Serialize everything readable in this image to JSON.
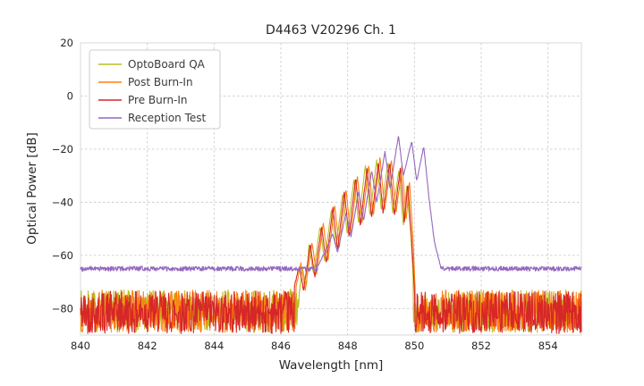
{
  "figure": {
    "background": "#ffffff"
  },
  "chart_data": {
    "type": "line",
    "title": "D4463 V20296 Ch. 1",
    "xlabel": "Wavelength [nm]",
    "ylabel": "Optical Power [dB]",
    "xlim": [
      840,
      855
    ],
    "ylim": [
      -90,
      20
    ],
    "grid": true,
    "legend_position": "upper left",
    "style": {
      "grid_color": "#cccccc",
      "spine_color": "#d9d9d9",
      "legend_border_color": "#cccccc",
      "text_color": "#262626"
    },
    "xticks": [
      {
        "value": 840,
        "label": "840"
      },
      {
        "value": 842,
        "label": "842"
      },
      {
        "value": 844,
        "label": "844"
      },
      {
        "value": 846,
        "label": "846"
      },
      {
        "value": 848,
        "label": "848"
      },
      {
        "value": 850,
        "label": "850"
      },
      {
        "value": 852,
        "label": "852"
      },
      {
        "value": 854,
        "label": "854"
      }
    ],
    "yticks": [
      {
        "value": 20,
        "label": "20"
      },
      {
        "value": 0,
        "label": "0"
      },
      {
        "value": -20,
        "label": "−20"
      },
      {
        "value": -40,
        "label": "−40"
      },
      {
        "value": -60,
        "label": "−60"
      },
      {
        "value": -80,
        "label": "−80"
      }
    ],
    "series": [
      {
        "name": "OptoBoard QA",
        "color": "#bcbd22",
        "seed": 7,
        "noise_floor_db": -81,
        "noise_amplitude_db": 8,
        "signal_jitter_db": 0.4,
        "envelope": [
          [
            846.28,
            -72
          ],
          [
            846.38,
            -80
          ],
          [
            846.48,
            -88
          ],
          [
            846.56,
            -74
          ],
          [
            846.64,
            -64
          ],
          [
            846.76,
            -72
          ],
          [
            846.84,
            -56
          ],
          [
            846.98,
            -67
          ],
          [
            847.17,
            -49
          ],
          [
            847.31,
            -62
          ],
          [
            847.51,
            -43
          ],
          [
            847.65,
            -57
          ],
          [
            847.85,
            -37
          ],
          [
            847.99,
            -52
          ],
          [
            848.19,
            -31
          ],
          [
            848.33,
            -48
          ],
          [
            848.53,
            -26
          ],
          [
            848.67,
            -45
          ],
          [
            848.87,
            -24
          ],
          [
            849.01,
            -43
          ],
          [
            849.21,
            -25
          ],
          [
            849.35,
            -44
          ],
          [
            849.53,
            -28
          ],
          [
            849.67,
            -49
          ],
          [
            849.77,
            -34
          ],
          [
            849.89,
            -52
          ],
          [
            849.97,
            -70
          ]
        ]
      },
      {
        "name": "Post Burn-In",
        "color": "#ff7f0e",
        "seed": 13,
        "noise_floor_db": -81,
        "noise_amplitude_db": 8,
        "signal_jitter_db": 0.4,
        "envelope": [
          [
            846.45,
            -72
          ],
          [
            846.6,
            -63
          ],
          [
            846.73,
            -73
          ],
          [
            846.93,
            -55
          ],
          [
            847.07,
            -67
          ],
          [
            847.27,
            -48
          ],
          [
            847.41,
            -62
          ],
          [
            847.61,
            -41
          ],
          [
            847.75,
            -57
          ],
          [
            847.95,
            -35
          ],
          [
            848.09,
            -52
          ],
          [
            848.29,
            -30
          ],
          [
            848.43,
            -48
          ],
          [
            848.63,
            -26
          ],
          [
            848.77,
            -45
          ],
          [
            848.97,
            -23
          ],
          [
            849.11,
            -43
          ],
          [
            849.31,
            -24
          ],
          [
            849.45,
            -44
          ],
          [
            849.63,
            -26
          ],
          [
            849.75,
            -47
          ],
          [
            849.85,
            -32
          ],
          [
            849.95,
            -52
          ],
          [
            850.02,
            -72
          ]
        ]
      },
      {
        "name": "Pre Burn-In",
        "color": "#d62728",
        "seed": 42,
        "noise_floor_db": -81.5,
        "noise_amplitude_db": 8,
        "signal_jitter_db": 0.4,
        "envelope": [
          [
            846.4,
            -72
          ],
          [
            846.55,
            -64
          ],
          [
            846.68,
            -73
          ],
          [
            846.88,
            -56
          ],
          [
            847.02,
            -68
          ],
          [
            847.22,
            -49
          ],
          [
            847.36,
            -63
          ],
          [
            847.56,
            -42
          ],
          [
            847.7,
            -58
          ],
          [
            847.9,
            -36
          ],
          [
            848.04,
            -53
          ],
          [
            848.24,
            -31
          ],
          [
            848.38,
            -49
          ],
          [
            848.58,
            -27
          ],
          [
            848.72,
            -46
          ],
          [
            848.92,
            -25
          ],
          [
            849.06,
            -44
          ],
          [
            849.26,
            -25
          ],
          [
            849.4,
            -45
          ],
          [
            849.58,
            -27
          ],
          [
            849.7,
            -48
          ],
          [
            849.8,
            -33
          ],
          [
            849.92,
            -55
          ],
          [
            850.0,
            -73
          ]
        ]
      },
      {
        "name": "Reception Test",
        "color": "#9467bd",
        "seed": 99,
        "noise_floor_db": -65,
        "noise_amplitude_db": 0.9,
        "signal_jitter_db": 0.3,
        "envelope": [
          [
            847.1,
            -64
          ],
          [
            847.35,
            -58
          ],
          [
            847.55,
            -52
          ],
          [
            847.7,
            -59
          ],
          [
            847.95,
            -44
          ],
          [
            848.1,
            -53
          ],
          [
            848.33,
            -36
          ],
          [
            848.48,
            -47
          ],
          [
            848.72,
            -28
          ],
          [
            848.87,
            -40
          ],
          [
            849.12,
            -21
          ],
          [
            849.27,
            -35
          ],
          [
            849.52,
            -15
          ],
          [
            849.67,
            -30
          ],
          [
            849.92,
            -17
          ],
          [
            850.07,
            -32
          ],
          [
            850.28,
            -19
          ],
          [
            850.45,
            -40
          ],
          [
            850.6,
            -55
          ],
          [
            850.78,
            -64
          ]
        ]
      }
    ]
  }
}
